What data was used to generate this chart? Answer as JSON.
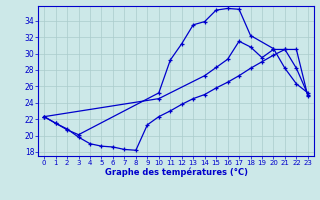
{
  "title": "Graphe des températures (°C)",
  "bg_color": "#cce8e8",
  "line_color": "#0000cc",
  "grid_color": "#aacccc",
  "xlim": [
    -0.5,
    23.5
  ],
  "ylim": [
    17.5,
    35.8
  ],
  "xticks": [
    0,
    1,
    2,
    3,
    4,
    5,
    6,
    7,
    8,
    9,
    10,
    11,
    12,
    13,
    14,
    15,
    16,
    17,
    18,
    19,
    20,
    21,
    22,
    23
  ],
  "yticks": [
    18,
    20,
    22,
    24,
    26,
    28,
    30,
    32,
    34
  ],
  "curve_top_x": [
    0,
    1,
    2,
    3,
    10,
    11,
    12,
    13,
    14,
    15,
    16,
    17,
    18,
    20,
    21,
    22,
    23
  ],
  "curve_top_y": [
    22.3,
    21.5,
    20.7,
    20.1,
    25.2,
    29.2,
    31.2,
    33.5,
    33.9,
    35.3,
    35.5,
    35.4,
    32.2,
    30.6,
    28.2,
    26.3,
    25.2
  ],
  "curve_mid_x": [
    0,
    10,
    14,
    15,
    16,
    17,
    18,
    19,
    20,
    21,
    22,
    23
  ],
  "curve_mid_y": [
    22.3,
    24.5,
    27.3,
    28.3,
    29.3,
    31.5,
    30.8,
    29.5,
    30.5,
    30.5,
    28.2,
    25.0
  ],
  "curve_bot_x": [
    0,
    1,
    2,
    3,
    4,
    5,
    6,
    7,
    8,
    9,
    10,
    11,
    12,
    13,
    14,
    15,
    16,
    17,
    18,
    19,
    20,
    21,
    22,
    23
  ],
  "curve_bot_y": [
    22.3,
    21.5,
    20.8,
    19.8,
    19.0,
    18.7,
    18.6,
    18.3,
    18.2,
    21.3,
    22.3,
    23.0,
    23.8,
    24.5,
    25.0,
    25.8,
    26.5,
    27.3,
    28.2,
    29.0,
    29.8,
    30.5,
    30.5,
    24.8
  ]
}
